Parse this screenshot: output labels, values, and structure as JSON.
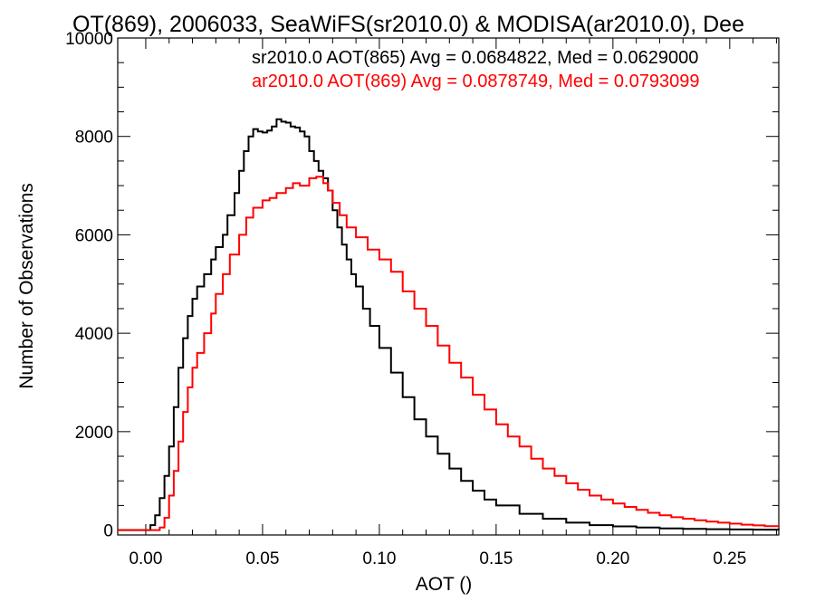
{
  "chart_data": {
    "type": "line",
    "title": "OT(869), 2006033, SeaWiFS(sr2010.0) & MODISA(ar2010.0), Dee",
    "xlabel": "AOT ()",
    "ylabel": "Number of Observations",
    "xlim": [
      -0.012,
      0.271
    ],
    "ylim": [
      -100,
      10000
    ],
    "xticks": [
      0.0,
      0.05,
      0.1,
      0.15,
      0.2,
      0.25
    ],
    "xtick_labels": [
      "0.00",
      "0.05",
      "0.10",
      "0.15",
      "0.20",
      "0.25"
    ],
    "yticks": [
      0,
      2000,
      4000,
      6000,
      8000,
      10000
    ],
    "ytick_labels": [
      "0",
      "2000",
      "4000",
      "6000",
      "8000",
      "10000"
    ],
    "grid": false,
    "legend_position": "top-right",
    "series": [
      {
        "name": "sr2010.0 AOT(865) Avg = 0.0684822, Med = 0.0629000",
        "color": "#000000",
        "x": [
          -0.012,
          0.0,
          0.002,
          0.004,
          0.006,
          0.008,
          0.01,
          0.012,
          0.014,
          0.016,
          0.018,
          0.02,
          0.022,
          0.025,
          0.028,
          0.03,
          0.033,
          0.035,
          0.038,
          0.04,
          0.042,
          0.044,
          0.046,
          0.048,
          0.05,
          0.052,
          0.054,
          0.056,
          0.058,
          0.06,
          0.062,
          0.064,
          0.066,
          0.068,
          0.07,
          0.072,
          0.074,
          0.076,
          0.078,
          0.08,
          0.082,
          0.084,
          0.086,
          0.088,
          0.09,
          0.093,
          0.096,
          0.1,
          0.105,
          0.11,
          0.115,
          0.12,
          0.125,
          0.13,
          0.135,
          0.14,
          0.145,
          0.15,
          0.16,
          0.17,
          0.18,
          0.19,
          0.2,
          0.21,
          0.22,
          0.23,
          0.24,
          0.25,
          0.26,
          0.271
        ],
        "values": [
          0,
          0,
          100,
          300,
          650,
          1100,
          1700,
          2500,
          3300,
          3900,
          4350,
          4700,
          4950,
          5200,
          5500,
          5750,
          6000,
          6400,
          6850,
          7300,
          7700,
          8000,
          8150,
          8100,
          8080,
          8120,
          8200,
          8350,
          8300,
          8280,
          8200,
          8180,
          8100,
          8000,
          7700,
          7500,
          7300,
          7150,
          6900,
          6500,
          6150,
          5800,
          5500,
          5200,
          4950,
          4500,
          4150,
          3700,
          3200,
          2700,
          2250,
          1900,
          1550,
          1250,
          1000,
          800,
          620,
          500,
          330,
          230,
          150,
          100,
          75,
          50,
          35,
          25,
          18,
          12,
          8,
          5
        ]
      },
      {
        "name": "ar2010.0 AOT(869) Avg = 0.0878749, Med = 0.0793099",
        "color": "#ff0000",
        "x": [
          -0.012,
          0.004,
          0.006,
          0.008,
          0.01,
          0.012,
          0.014,
          0.016,
          0.018,
          0.02,
          0.022,
          0.025,
          0.028,
          0.03,
          0.033,
          0.036,
          0.04,
          0.043,
          0.046,
          0.05,
          0.053,
          0.056,
          0.06,
          0.063,
          0.066,
          0.07,
          0.073,
          0.076,
          0.078,
          0.08,
          0.083,
          0.086,
          0.09,
          0.095,
          0.1,
          0.105,
          0.11,
          0.115,
          0.12,
          0.125,
          0.13,
          0.135,
          0.14,
          0.145,
          0.15,
          0.155,
          0.16,
          0.165,
          0.17,
          0.175,
          0.18,
          0.185,
          0.19,
          0.195,
          0.2,
          0.205,
          0.21,
          0.215,
          0.22,
          0.225,
          0.23,
          0.235,
          0.24,
          0.245,
          0.25,
          0.255,
          0.26,
          0.265,
          0.271
        ],
        "values": [
          0,
          0,
          50,
          250,
          700,
          1200,
          1800,
          2400,
          2900,
          3300,
          3600,
          4000,
          4400,
          4800,
          5200,
          5600,
          6000,
          6350,
          6550,
          6700,
          6750,
          6850,
          6950,
          7050,
          7000,
          7150,
          7180,
          7050,
          6900,
          6650,
          6400,
          6150,
          5950,
          5700,
          5500,
          5250,
          4850,
          4500,
          4150,
          3750,
          3400,
          3100,
          2750,
          2450,
          2150,
          1900,
          1700,
          1450,
          1250,
          1100,
          950,
          820,
          700,
          620,
          540,
          470,
          410,
          350,
          300,
          260,
          230,
          200,
          170,
          150,
          130,
          110,
          95,
          80,
          65
        ]
      }
    ]
  }
}
